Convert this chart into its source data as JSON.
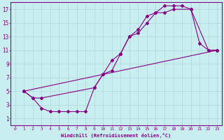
{
  "xlabel": "Windchill (Refroidissement éolien,°C)",
  "bg_color": "#c8eef0",
  "line_color": "#880088",
  "grid_color": "#b0d8d8",
  "xlim": [
    -0.5,
    23.5
  ],
  "ylim": [
    0,
    18
  ],
  "xticks": [
    0,
    1,
    2,
    3,
    4,
    5,
    6,
    7,
    8,
    9,
    10,
    11,
    12,
    13,
    14,
    15,
    16,
    17,
    18,
    19,
    20,
    21,
    22,
    23
  ],
  "yticks": [
    1,
    3,
    5,
    7,
    9,
    11,
    13,
    15,
    17
  ],
  "series1_x": [
    1,
    2,
    3,
    4,
    5,
    6,
    7,
    8,
    9,
    10,
    11,
    12,
    13,
    14,
    15,
    16,
    17,
    18,
    20,
    21,
    22,
    23
  ],
  "series1_y": [
    5,
    4,
    2.5,
    2,
    2,
    2,
    2,
    2,
    5.5,
    7.5,
    8,
    10.5,
    13,
    13.5,
    15,
    16.5,
    16.5,
    17,
    17,
    12,
    11,
    11
  ],
  "series2_x": [
    1,
    2,
    3,
    9,
    10,
    11,
    12,
    13,
    14,
    15,
    16,
    17,
    18,
    19,
    20,
    22,
    23
  ],
  "series2_y": [
    5,
    4,
    4,
    5.5,
    7.5,
    9.5,
    10.5,
    13,
    14,
    16,
    16.5,
    17.5,
    17.5,
    17.5,
    17,
    11,
    11
  ],
  "series3_x": [
    1,
    23
  ],
  "series3_y": [
    5,
    11
  ]
}
